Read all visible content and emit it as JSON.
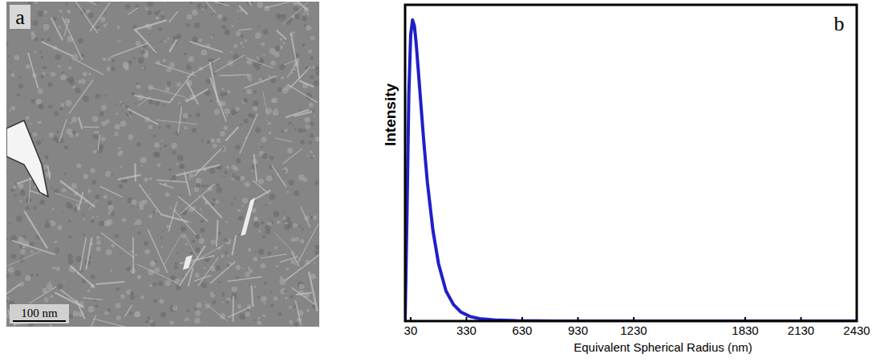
{
  "image_panel": {
    "label": "a",
    "scale_bar": "100 nm"
  },
  "chart_data": {
    "type": "line",
    "annotations": [
      "b"
    ],
    "x_label": "Equivalent Spherical Radius (nm)",
    "y_label": "Intensity",
    "x": [
      0,
      10,
      20,
      30,
      40,
      50,
      60,
      70,
      80,
      100,
      120,
      150,
      180,
      220,
      260,
      300,
      350,
      400,
      500,
      600,
      800,
      1000,
      1500,
      2000,
      2430
    ],
    "values": [
      0,
      0.35,
      0.75,
      0.95,
      1.0,
      0.98,
      0.92,
      0.84,
      0.76,
      0.6,
      0.46,
      0.3,
      0.19,
      0.1,
      0.055,
      0.03,
      0.015,
      0.008,
      0.003,
      0.001,
      0,
      0,
      0,
      0,
      0
    ],
    "color": "#1f1fc8",
    "xlim": [
      0,
      2430
    ],
    "ylim": [
      0,
      1.05
    ],
    "xticks": [
      30,
      330,
      630,
      930,
      1230,
      1830,
      2130,
      2430
    ],
    "tick_labels": "x",
    "grid": false
  }
}
